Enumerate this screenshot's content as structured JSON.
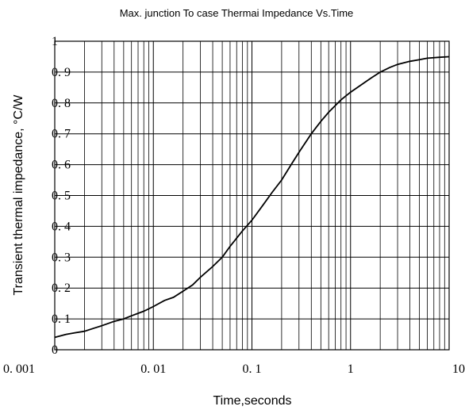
{
  "chart_data": {
    "type": "line",
    "title": "Max. junction To case Thermai Impedance Vs.Time",
    "xlabel": "Time,seconds",
    "ylabel": "Transient thermal impedance, °C/W",
    "xscale": "log",
    "xlim": [
      0.001,
      10
    ],
    "ylim": [
      0,
      1
    ],
    "grid": true,
    "x_tick_labels": [
      "0. 001",
      "0. 01",
      "0. 1",
      "1",
      "10"
    ],
    "y_tick_labels": [
      "0",
      "0. 1",
      "0. 2",
      "0. 3",
      "0. 4",
      "0. 5",
      "0. 6",
      "0. 7",
      "0. 8",
      "0. 9",
      "1"
    ],
    "series": [
      {
        "x": [
          0.001,
          0.0013,
          0.0016,
          0.002,
          0.0025,
          0.003,
          0.004,
          0.005,
          0.006,
          0.008,
          0.01,
          0.013,
          0.016,
          0.02,
          0.025,
          0.03,
          0.04,
          0.05,
          0.06,
          0.08,
          0.1,
          0.13,
          0.16,
          0.2,
          0.25,
          0.3,
          0.4,
          0.5,
          0.6,
          0.8,
          1,
          1.3,
          1.6,
          2,
          2.5,
          3,
          4,
          5,
          6,
          8,
          10
        ],
        "y": [
          0.04,
          0.05,
          0.055,
          0.06,
          0.07,
          0.078,
          0.092,
          0.1,
          0.11,
          0.125,
          0.14,
          0.16,
          0.17,
          0.19,
          0.21,
          0.235,
          0.27,
          0.3,
          0.335,
          0.385,
          0.42,
          0.47,
          0.51,
          0.55,
          0.6,
          0.64,
          0.7,
          0.74,
          0.77,
          0.81,
          0.835,
          0.86,
          0.88,
          0.9,
          0.915,
          0.925,
          0.935,
          0.94,
          0.945,
          0.948,
          0.95
        ]
      }
    ]
  }
}
